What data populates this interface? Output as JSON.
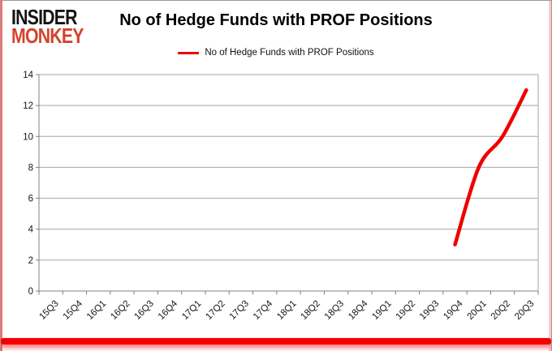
{
  "logo": {
    "line1": "INSIDER",
    "line2": "MONKEY"
  },
  "title": "No of Hedge Funds with PROF Positions",
  "legend": {
    "label": "No of Hedge Funds with PROF Positions"
  },
  "colors": {
    "series_red": "#ee0000",
    "logo_black": "#141414",
    "logo_red": "#d5432d",
    "frame_red": "#f40000",
    "grid_gray": "#a6a6a6",
    "axis_gray": "#808080",
    "tick_text": "#161616"
  },
  "chart_data": {
    "type": "line",
    "title": "No of Hedge Funds with PROF Positions",
    "categories": [
      "15Q3",
      "15Q4",
      "16Q1",
      "16Q2",
      "16Q3",
      "16Q4",
      "17Q1",
      "17Q2",
      "17Q3",
      "17Q4",
      "18Q1",
      "18Q2",
      "18Q3",
      "18Q4",
      "19Q1",
      "19Q2",
      "19Q3",
      "19Q4",
      "20Q1",
      "20Q2",
      "20Q3"
    ],
    "series": [
      {
        "name": "No of Hedge Funds with PROF Positions",
        "color": "#ee0000",
        "values": [
          null,
          null,
          null,
          null,
          null,
          null,
          null,
          null,
          null,
          null,
          null,
          null,
          null,
          null,
          null,
          null,
          null,
          3,
          8,
          10,
          13
        ]
      }
    ],
    "ylim": [
      0,
      14
    ],
    "ytick_step": 2,
    "xlabel": "",
    "ylabel": "",
    "grid": true,
    "legend_position": "top",
    "x_label_rotation": -45
  }
}
